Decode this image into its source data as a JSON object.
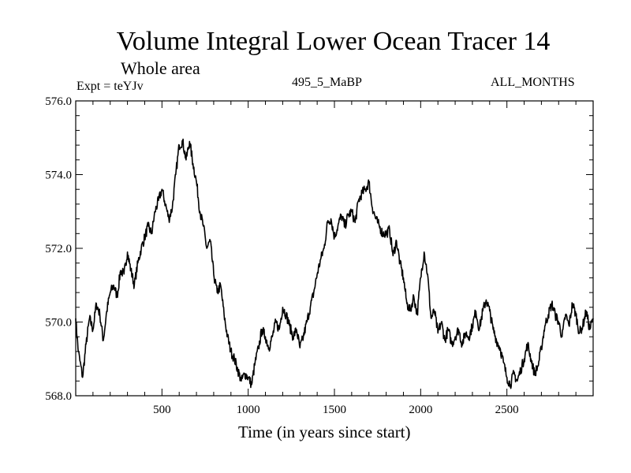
{
  "chart_data": {
    "type": "line",
    "title": "Volume Integral Lower Ocean Tracer 14",
    "subtitle": "Whole area",
    "experiment_label": "Expt = teYJv",
    "period_label": "495_5_MaBP",
    "months_label": "ALL_MONTHS",
    "xlabel": "Time (in years since start)",
    "ylabel": "",
    "xlim": [
      0,
      3000
    ],
    "ylim": [
      568.0,
      576.0
    ],
    "xticks": [
      500,
      1000,
      1500,
      2000,
      2500
    ],
    "xtick_labels": [
      "500",
      "1000",
      "1500",
      "2000",
      "2500"
    ],
    "yticks": [
      568.0,
      570.0,
      572.0,
      574.0,
      576.0
    ],
    "ytick_labels": [
      "568.0",
      "570.0",
      "572.0",
      "574.0",
      "576.0"
    ],
    "series": [
      {
        "name": "Tracer 14",
        "x": [
          0,
          15,
          40,
          60,
          80,
          100,
          120,
          140,
          160,
          180,
          200,
          220,
          240,
          260,
          280,
          300,
          320,
          340,
          360,
          380,
          400,
          420,
          440,
          460,
          480,
          500,
          520,
          540,
          560,
          580,
          600,
          620,
          640,
          660,
          680,
          700,
          720,
          740,
          760,
          780,
          800,
          820,
          840,
          860,
          880,
          900,
          920,
          940,
          960,
          980,
          1000,
          1020,
          1040,
          1060,
          1080,
          1100,
          1120,
          1140,
          1160,
          1180,
          1200,
          1220,
          1240,
          1260,
          1280,
          1300,
          1320,
          1340,
          1360,
          1380,
          1400,
          1420,
          1440,
          1460,
          1480,
          1500,
          1520,
          1540,
          1560,
          1580,
          1600,
          1620,
          1640,
          1660,
          1680,
          1700,
          1720,
          1740,
          1760,
          1780,
          1800,
          1820,
          1840,
          1860,
          1880,
          1900,
          1920,
          1940,
          1960,
          1980,
          2000,
          2020,
          2040,
          2060,
          2080,
          2100,
          2120,
          2140,
          2160,
          2180,
          2200,
          2220,
          2240,
          2260,
          2280,
          2300,
          2320,
          2340,
          2360,
          2380,
          2400,
          2420,
          2440,
          2460,
          2480,
          2500,
          2520,
          2540,
          2560,
          2580,
          2600,
          2620,
          2640,
          2660,
          2680,
          2700,
          2720,
          2740,
          2760,
          2780,
          2800,
          2820,
          2840,
          2860,
          2880,
          2900,
          2920,
          2940,
          2960,
          2980,
          3000
        ],
        "values": [
          570.1,
          569.2,
          568.5,
          569.4,
          570.1,
          569.8,
          570.5,
          570.2,
          569.5,
          570.3,
          570.8,
          571.0,
          570.7,
          571.4,
          571.3,
          571.9,
          571.4,
          571.0,
          571.6,
          572.0,
          572.3,
          572.6,
          572.4,
          573.0,
          573.3,
          573.6,
          573.2,
          572.8,
          573.1,
          574.0,
          574.8,
          574.9,
          574.4,
          574.9,
          574.3,
          573.8,
          573.0,
          572.6,
          572.0,
          572.2,
          571.3,
          570.8,
          571.0,
          570.2,
          569.6,
          569.2,
          569.0,
          568.7,
          568.4,
          568.6,
          568.5,
          568.3,
          568.9,
          569.3,
          569.8,
          569.6,
          569.3,
          569.6,
          570.0,
          569.8,
          570.4,
          570.2,
          569.9,
          569.6,
          569.8,
          569.3,
          569.6,
          570.0,
          570.4,
          570.8,
          571.3,
          571.7,
          572.0,
          572.7,
          572.8,
          572.3,
          572.6,
          572.9,
          572.6,
          572.9,
          573.0,
          572.7,
          573.3,
          573.5,
          573.6,
          573.8,
          573.1,
          572.8,
          572.6,
          572.4,
          572.4,
          572.5,
          571.8,
          572.2,
          571.6,
          571.2,
          570.5,
          570.3,
          570.7,
          570.2,
          571.2,
          571.9,
          571.3,
          570.1,
          570.3,
          569.7,
          570.0,
          569.5,
          569.8,
          569.4,
          569.6,
          569.8,
          569.4,
          569.7,
          569.6,
          569.9,
          570.3,
          569.8,
          570.3,
          570.6,
          570.3,
          569.8,
          569.5,
          569.3,
          568.9,
          568.5,
          568.3,
          568.6,
          568.4,
          568.7,
          569.0,
          569.4,
          569.0,
          568.6,
          568.8,
          569.3,
          569.9,
          570.2,
          570.5,
          570.2,
          570.0,
          569.6,
          570.2,
          569.9,
          570.5,
          570.2,
          569.7,
          569.9,
          570.3,
          569.8,
          570.1
        ]
      }
    ],
    "line_color": "#000000",
    "grid": false
  }
}
